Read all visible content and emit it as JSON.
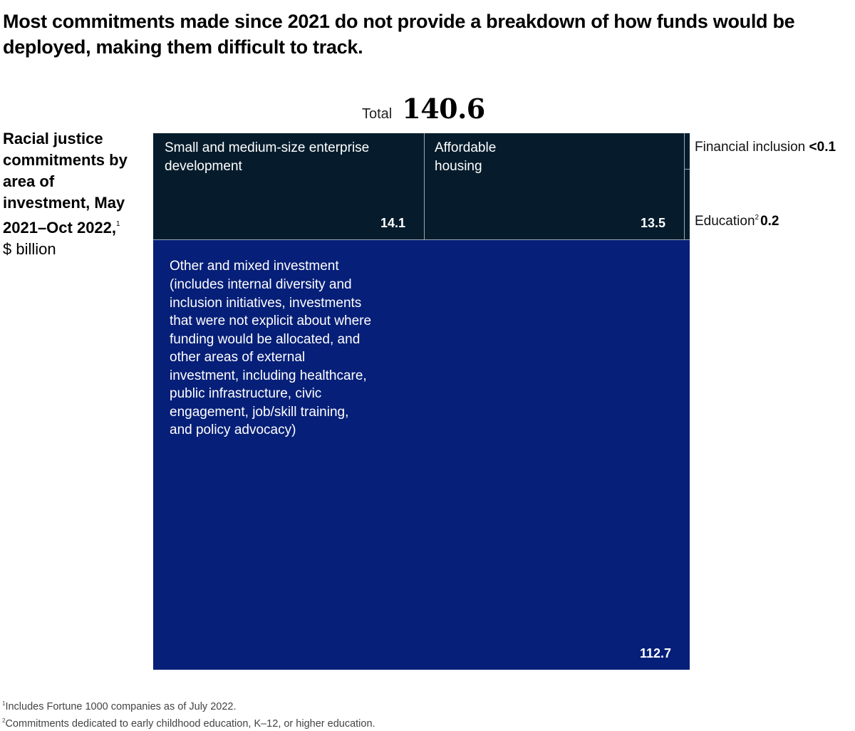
{
  "title": "Most commitments made since 2021 do not provide a breakdown of how funds would be deployed, making them difficult to track.",
  "total": {
    "label": "Total",
    "value": "140.6"
  },
  "side_label": {
    "bold_text": "Racial justice commitments by area of investment, May 2021–Oct 2022,",
    "footnote_ref": "1",
    "unit": "$ billion"
  },
  "colors": {
    "dark_navy": "#061c2c",
    "royal_blue": "#061f78",
    "divider": "#9aa6b4"
  },
  "chart_data": {
    "type": "treemap",
    "title": "Racial justice commitments by area of investment, May 2021–Oct 2022",
    "unit": "$ billion",
    "total": 140.6,
    "segments": [
      {
        "name": "Small and medium-size enterprise development",
        "value": 14.1,
        "value_label": "14.1",
        "group": "top",
        "color": "#061c2c"
      },
      {
        "name": "Affordable housing",
        "value": 13.5,
        "value_label": "13.5",
        "group": "top",
        "color": "#061c2c"
      },
      {
        "name": "Financial inclusion",
        "value": 0.05,
        "value_label": "<0.1",
        "group": "top-strip",
        "color": "#061c2c"
      },
      {
        "name": "Education",
        "footnote_ref": "2",
        "value": 0.2,
        "value_label": "0.2",
        "group": "top-strip",
        "color": "#061c2c"
      },
      {
        "name": "Other and mixed investment",
        "description": "(includes internal diversity and inclusion initiatives, investments that were not explicit about where funding would be allocated, and other areas of external investment, including healthcare, public infrastructure, civic engagement, job/skill training, and policy advocacy)",
        "value": 112.7,
        "value_label": "112.7",
        "group": "bottom",
        "color": "#061f78"
      }
    ]
  },
  "footnotes": [
    {
      "ref": "1",
      "text": "Includes Fortune 1000 companies as of July 2022."
    },
    {
      "ref": "2",
      "text": "Commitments dedicated to early childhood education, K–12, or higher education."
    }
  ]
}
